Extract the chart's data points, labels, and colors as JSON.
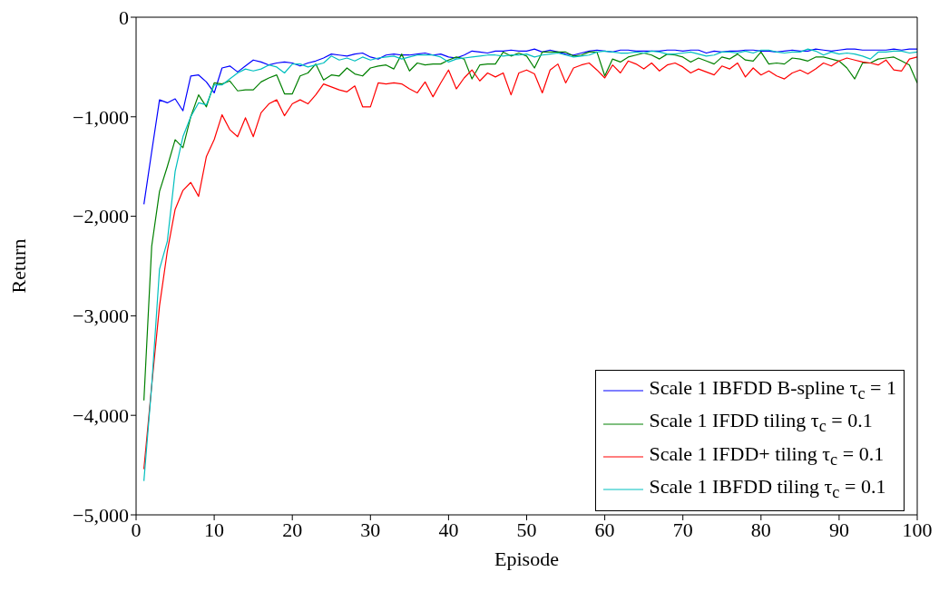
{
  "chart_data": {
    "type": "line",
    "xlabel": "Episode",
    "ylabel": "Return",
    "x": [
      1,
      2,
      3,
      4,
      5,
      6,
      7,
      8,
      9,
      10,
      11,
      12,
      13,
      14,
      15,
      16,
      17,
      18,
      19,
      20,
      21,
      22,
      23,
      24,
      25,
      26,
      27,
      28,
      29,
      30,
      31,
      32,
      33,
      34,
      35,
      36,
      37,
      38,
      39,
      40,
      41,
      42,
      43,
      44,
      45,
      46,
      47,
      48,
      49,
      50,
      51,
      52,
      53,
      54,
      55,
      56,
      57,
      58,
      59,
      60,
      61,
      62,
      63,
      64,
      65,
      66,
      67,
      68,
      69,
      70,
      71,
      72,
      73,
      74,
      75,
      76,
      77,
      78,
      79,
      80,
      81,
      82,
      83,
      84,
      85,
      86,
      87,
      88,
      89,
      90,
      91,
      92,
      93,
      94,
      95,
      96,
      97,
      98,
      99,
      100
    ],
    "series": [
      {
        "name": "Scale 1 IBFDD B-spline τ$_{c}$ = 1",
        "color": "#0000ff",
        "values": [
          -1880,
          -1350,
          -830,
          -860,
          -820,
          -940,
          -590,
          -580,
          -650,
          -760,
          -510,
          -490,
          -550,
          -490,
          -430,
          -450,
          -480,
          -460,
          -450,
          -460,
          -490,
          -460,
          -440,
          -410,
          -370,
          -380,
          -390,
          -370,
          -360,
          -400,
          -420,
          -380,
          -370,
          -380,
          -380,
          -370,
          -360,
          -380,
          -370,
          -400,
          -410,
          -380,
          -340,
          -350,
          -360,
          -340,
          -340,
          -330,
          -340,
          -340,
          -320,
          -350,
          -330,
          -350,
          -370,
          -380,
          -360,
          -340,
          -330,
          -340,
          -350,
          -330,
          -330,
          -340,
          -340,
          -340,
          -340,
          -330,
          -330,
          -340,
          -330,
          -330,
          -360,
          -340,
          -350,
          -340,
          -340,
          -330,
          -330,
          -340,
          -340,
          -350,
          -340,
          -330,
          -340,
          -340,
          -320,
          -330,
          -340,
          -330,
          -320,
          -320,
          -330,
          -330,
          -330,
          -330,
          -320,
          -330,
          -320,
          -320
        ]
      },
      {
        "name": "Scale 1 IFDD tiling τ$_{c}$ = 0.1",
        "color": "#008000",
        "values": [
          -3850,
          -2300,
          -1750,
          -1500,
          -1230,
          -1310,
          -1000,
          -780,
          -900,
          -660,
          -670,
          -640,
          -740,
          -730,
          -730,
          -650,
          -610,
          -580,
          -770,
          -770,
          -590,
          -560,
          -470,
          -630,
          -580,
          -590,
          -510,
          -570,
          -590,
          -510,
          -490,
          -480,
          -520,
          -370,
          -540,
          -460,
          -480,
          -470,
          -470,
          -430,
          -400,
          -420,
          -620,
          -480,
          -470,
          -470,
          -350,
          -390,
          -360,
          -390,
          -510,
          -350,
          -350,
          -350,
          -350,
          -390,
          -380,
          -350,
          -350,
          -590,
          -420,
          -450,
          -400,
          -380,
          -360,
          -380,
          -420,
          -370,
          -380,
          -400,
          -450,
          -410,
          -440,
          -470,
          -400,
          -420,
          -370,
          -430,
          -440,
          -350,
          -470,
          -460,
          -470,
          -410,
          -420,
          -440,
          -400,
          -400,
          -420,
          -440,
          -510,
          -620,
          -460,
          -460,
          -420,
          -410,
          -400,
          -440,
          -480,
          -660
        ]
      },
      {
        "name": "Scale 1 IFDD+ tiling τ$_{c}$ = 0.1",
        "color": "#ff0000",
        "values": [
          -4540,
          -3700,
          -2900,
          -2350,
          -1930,
          -1740,
          -1660,
          -1800,
          -1400,
          -1230,
          -980,
          -1130,
          -1200,
          -1010,
          -1200,
          -960,
          -870,
          -830,
          -990,
          -870,
          -830,
          -870,
          -780,
          -670,
          -700,
          -730,
          -750,
          -690,
          -900,
          -900,
          -660,
          -670,
          -660,
          -670,
          -720,
          -760,
          -650,
          -800,
          -660,
          -530,
          -720,
          -610,
          -530,
          -640,
          -560,
          -600,
          -560,
          -780,
          -560,
          -530,
          -570,
          -760,
          -530,
          -470,
          -660,
          -510,
          -480,
          -460,
          -530,
          -610,
          -480,
          -560,
          -440,
          -470,
          -520,
          -460,
          -540,
          -480,
          -460,
          -500,
          -560,
          -520,
          -550,
          -580,
          -490,
          -520,
          -460,
          -600,
          -510,
          -580,
          -540,
          -590,
          -620,
          -560,
          -530,
          -570,
          -520,
          -460,
          -490,
          -440,
          -410,
          -430,
          -450,
          -460,
          -480,
          -430,
          -530,
          -540,
          -420,
          -400
        ]
      },
      {
        "name": "Scale 1 IBFDD tiling τ$_{c}$ = 0.1",
        "color": "#00bfbf",
        "values": [
          -4660,
          -3700,
          -2530,
          -2250,
          -1550,
          -1200,
          -1000,
          -860,
          -880,
          -680,
          -680,
          -620,
          -560,
          -520,
          -540,
          -520,
          -480,
          -500,
          -560,
          -470,
          -470,
          -500,
          -480,
          -460,
          -390,
          -430,
          -410,
          -440,
          -400,
          -430,
          -410,
          -400,
          -390,
          -420,
          -400,
          -380,
          -380,
          -380,
          -400,
          -450,
          -420,
          -410,
          -400,
          -390,
          -380,
          -380,
          -390,
          -380,
          -380,
          -370,
          -400,
          -380,
          -370,
          -360,
          -380,
          -400,
          -390,
          -380,
          -350,
          -340,
          -350,
          -360,
          -360,
          -350,
          -360,
          -340,
          -350,
          -370,
          -370,
          -360,
          -350,
          -370,
          -390,
          -380,
          -350,
          -350,
          -360,
          -340,
          -360,
          -330,
          -330,
          -350,
          -360,
          -350,
          -350,
          -320,
          -340,
          -380,
          -350,
          -370,
          -360,
          -370,
          -390,
          -420,
          -350,
          -350,
          -340,
          -340,
          -360,
          -350
        ]
      }
    ],
    "xlim": [
      0,
      100
    ],
    "xticks": [
      0,
      10,
      20,
      30,
      40,
      50,
      60,
      70,
      80,
      90,
      100
    ],
    "ylim": [
      -5000,
      0
    ],
    "yticks": [
      {
        "value": -5000,
        "label": "−5,000"
      },
      {
        "value": -4000,
        "label": "−4,000"
      },
      {
        "value": -3000,
        "label": "−3,000"
      },
      {
        "value": -2000,
        "label": "−2,000"
      },
      {
        "value": -1000,
        "label": "−1,000"
      },
      0
    ],
    "legend": "bottom right"
  }
}
